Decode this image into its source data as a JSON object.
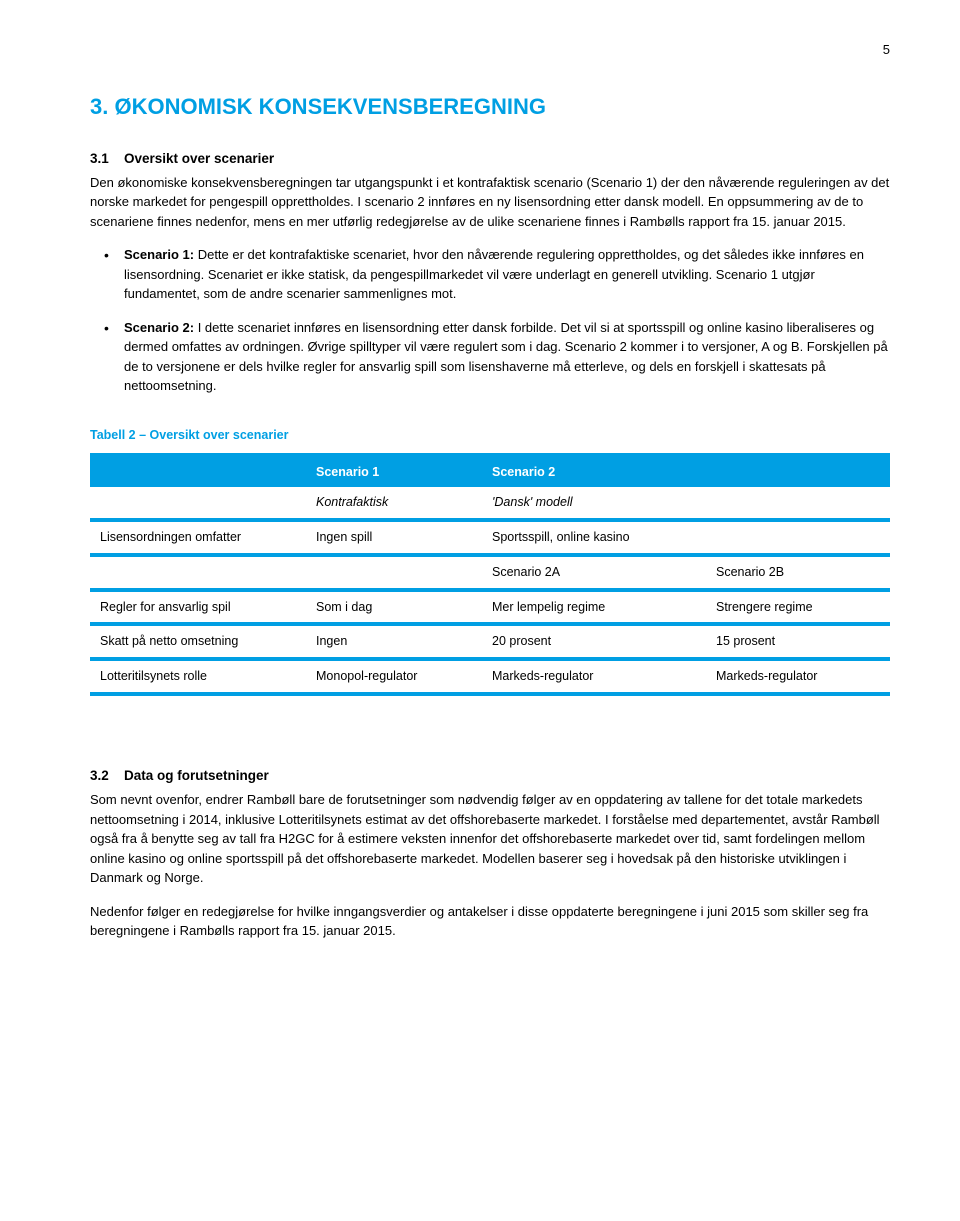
{
  "page_number": "5",
  "h1": "3.  ØKONOMISK KONSEKVENSBEREGNING",
  "s31": {
    "num": "3.1",
    "title": "Oversikt over scenarier",
    "p1": "Den økonomiske konsekvensberegningen tar utgangspunkt i et kontrafaktisk scenario (Scenario 1) der den nåværende reguleringen av det norske markedet for pengespill opprettholdes. I scenario 2 innføres en ny lisensordning etter dansk modell. En oppsummering av de to scenariene finnes nedenfor, mens en mer utførlig redegjørelse av de ulike scenariene finnes i Rambølls rapport fra 15. januar 2015.",
    "b1_label": "Scenario 1:",
    "b1": " Dette er det kontrafaktiske scenariet, hvor den nåværende regulering opprettholdes, og det således ikke innføres en lisensordning. Scenariet er ikke statisk, da pengespillmarkedet vil være underlagt en generell utvikling. Scenario 1 utgjør fundamentet, som de andre scenarier sammenlignes mot.",
    "b2_label": "Scenario 2:",
    "b2": " I dette scenariet innføres en lisensordning etter dansk forbilde. Det vil si at sportsspill og online kasino liberaliseres og dermed omfattes av ordningen. Øvrige spilltyper vil være regulert som i dag. Scenario 2 kommer i to versjoner, A og B. Forskjellen på de to versjonene er dels hvilke regler for ansvarlig spill som lisenshaverne må etterleve, og dels en forskjell i skattesats på nettoomsetning."
  },
  "table": {
    "title": "Tabell 2 – Oversikt over scenarier",
    "h_s1": "Scenario 1",
    "h_s2": "Scenario 2",
    "sub_s1": "Kontrafaktisk",
    "sub_s2": "'Dansk' modell",
    "r1_label": "Lisensordningen omfatter",
    "r1_c1": "Ingen spill",
    "r1_c2": "Sportsspill, online kasino",
    "sub2_a": "Scenario 2A",
    "sub2_b": "Scenario 2B",
    "r2_label": "Regler for ansvarlig spil",
    "r2_c1": "Som i dag",
    "r2_c2": "Mer lempelig regime",
    "r2_c3": "Strengere regime",
    "r3_label": "Skatt på netto omsetning",
    "r3_c1": "Ingen",
    "r3_c2": "20 prosent",
    "r3_c3": "15 prosent",
    "r4_label": "Lotteritilsynets rolle",
    "r4_c1": "Monopol-regulator",
    "r4_c2": "Markeds-regulator",
    "r4_c3": "Markeds-regulator"
  },
  "s32": {
    "num": "3.2",
    "title": "Data og forutsetninger",
    "p1": "Som nevnt ovenfor, endrer Rambøll bare de forutsetninger som nødvendig følger av en oppdatering av tallene for det totale markedets nettoomsetning i 2014, inklusive Lotteritilsynets estimat av det offshorebaserte markedet. I forståelse med departementet, avstår Rambøll også fra å benytte seg av tall fra H2GC for å estimere veksten innenfor det offshorebaserte markedet over tid, samt fordelingen mellom online kasino og online sportsspill på det offshorebaserte markedet. Modellen baserer seg i hovedsak på den historiske utviklingen i Danmark og Norge.",
    "p2": "Nedenfor følger en redegjørelse for hvilke inngangsverdier og antakelser i disse oppdaterte beregningene i juni 2015 som skiller seg fra beregningene i Rambølls rapport fra 15. januar 2015."
  }
}
